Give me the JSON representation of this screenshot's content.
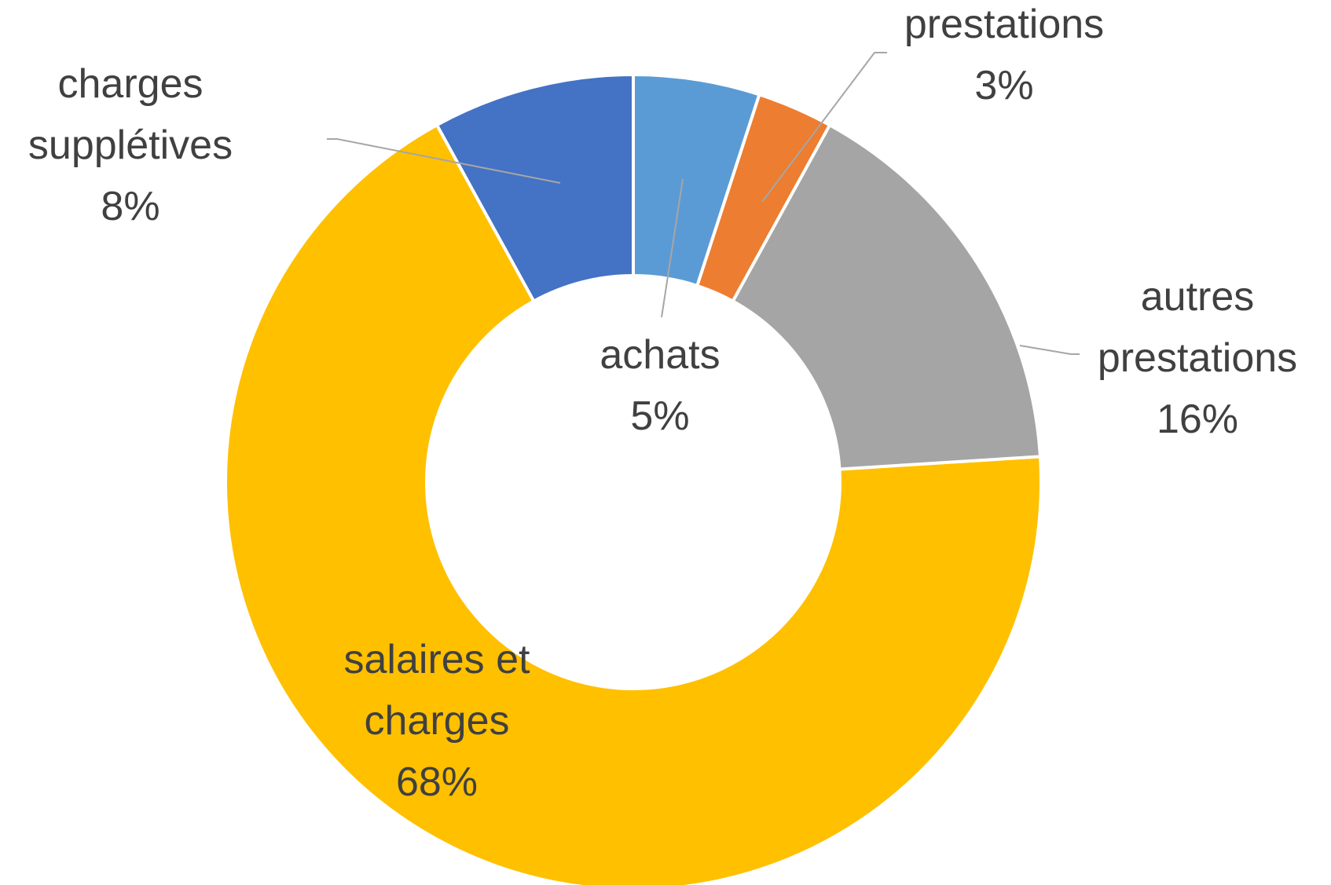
{
  "chart_data": {
    "type": "donut",
    "categories": [
      "achats",
      "prestations",
      "autres prestations",
      "salaires et charges",
      "charges supplétives"
    ],
    "values": [
      5,
      3,
      16,
      68,
      8
    ],
    "value_labels": [
      "5%",
      "3%",
      "16%",
      "68%",
      "8%"
    ],
    "colors": [
      "#5b9bd5",
      "#ed7d31",
      "#a5a5a5",
      "#ffc000",
      "#4472c4"
    ]
  }
}
